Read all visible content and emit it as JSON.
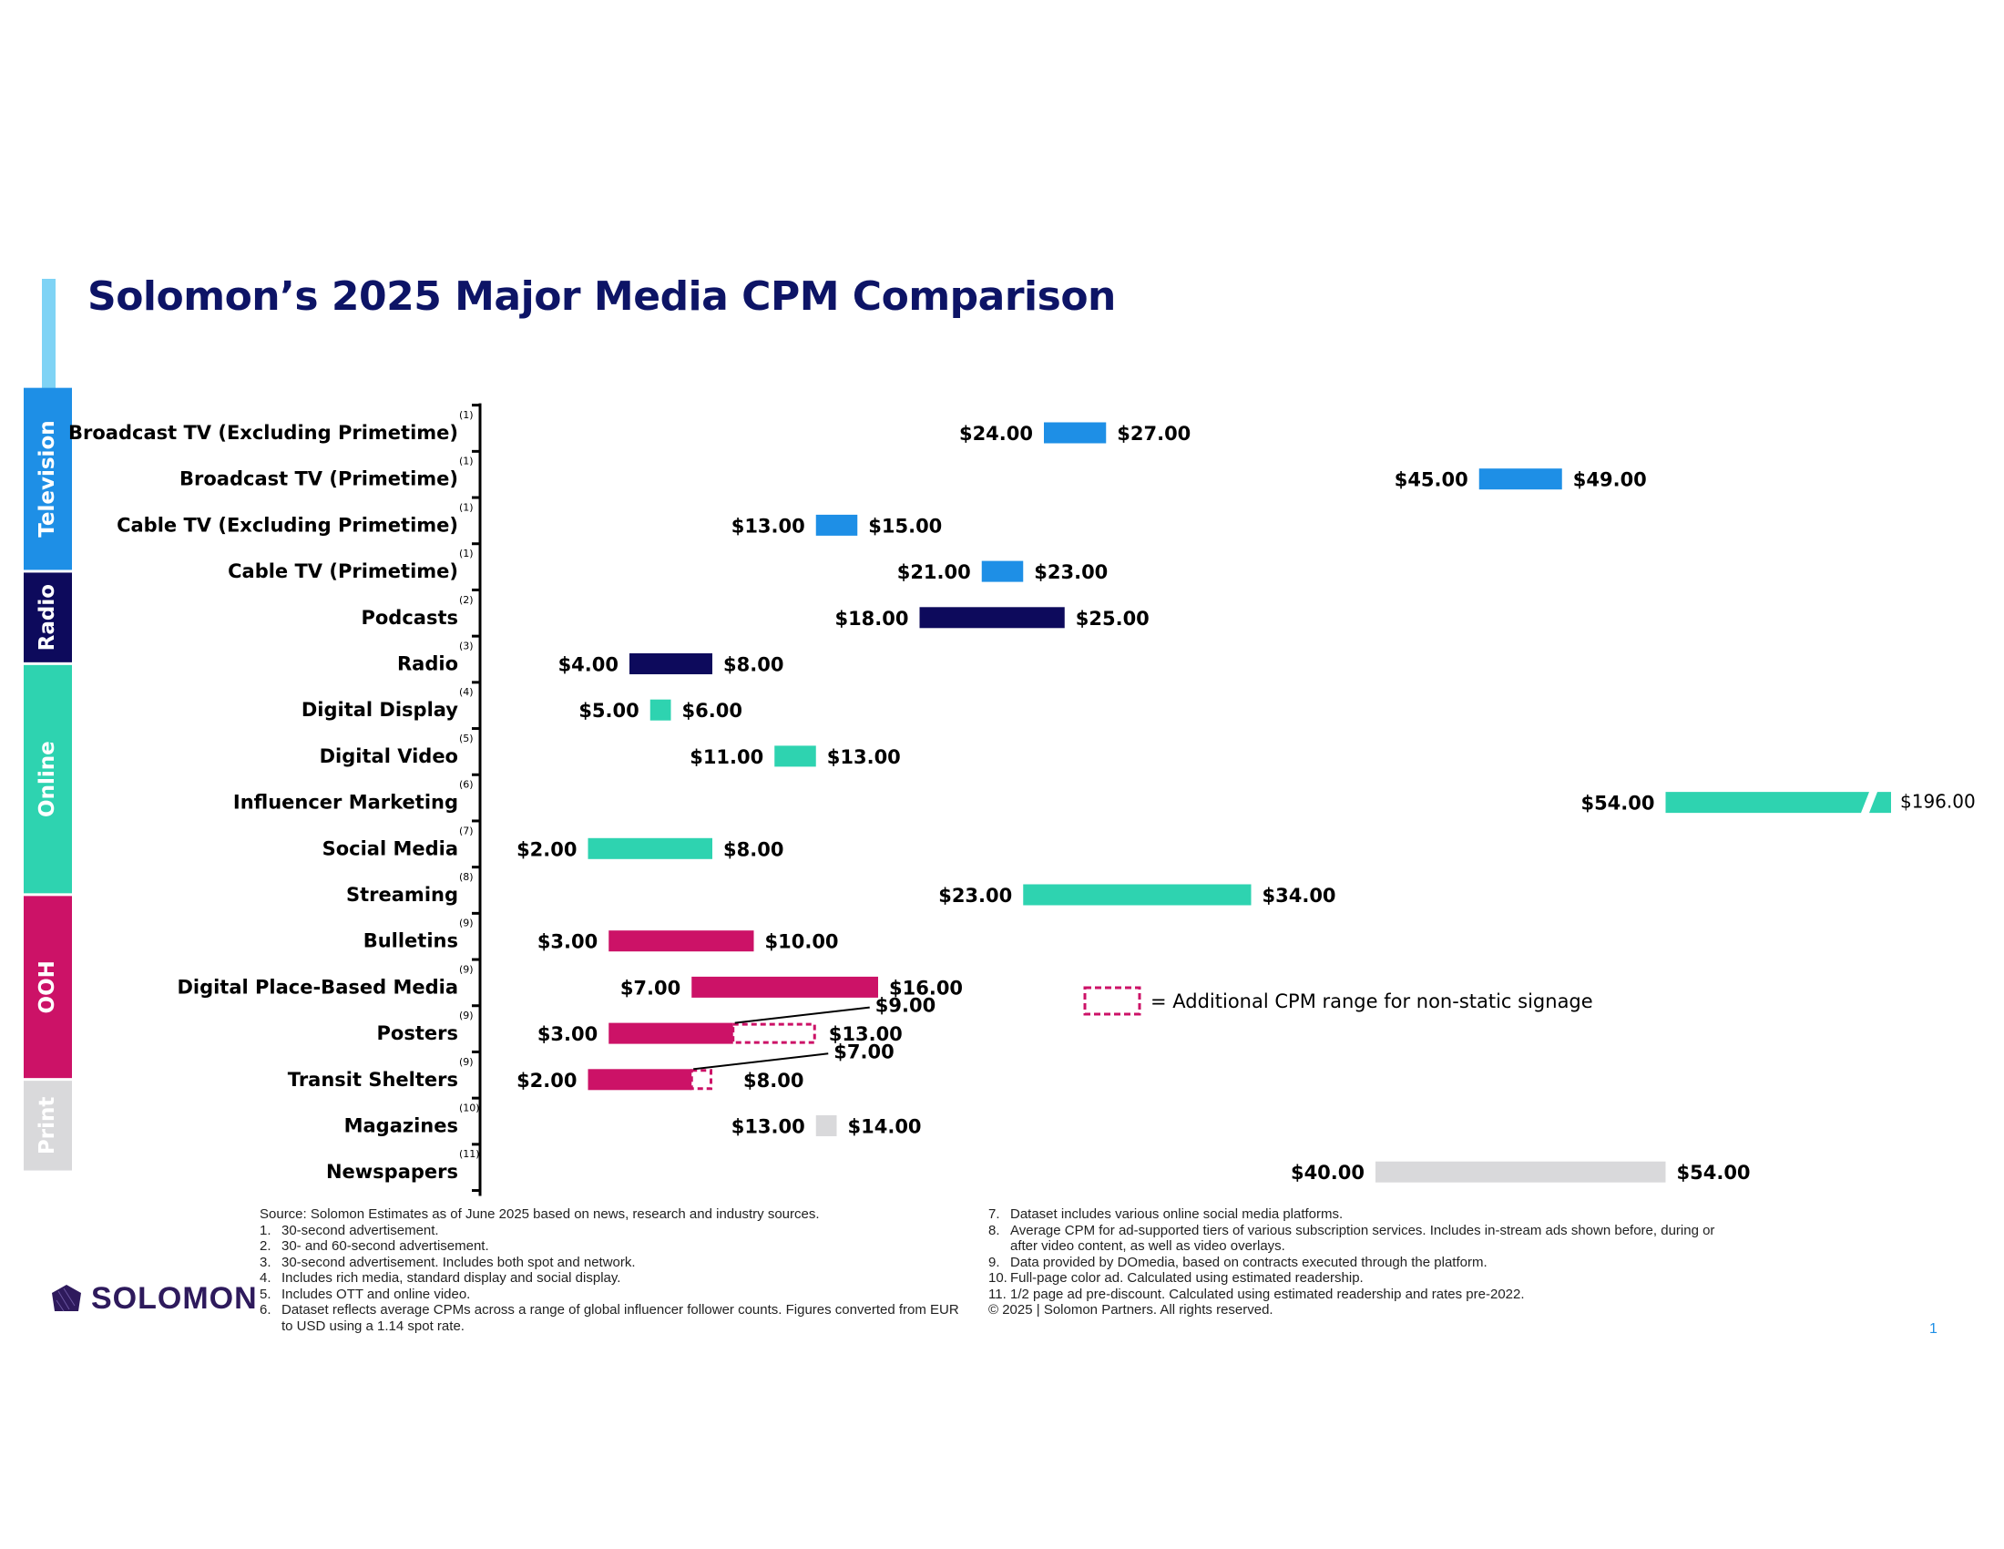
{
  "title": "Solomon’s 2025 Major Media CPM Comparison",
  "colors": {
    "title": "#0d1466",
    "accent": "#7fd3f5",
    "Television": "#1e8fe6",
    "Radio": "#0d0a5c",
    "Online": "#2ed3b0",
    "OOH": "#cc1267",
    "Print": "#d9d9db",
    "logo": "#2e1a5c",
    "page_number": "#1e8fe6"
  },
  "groups": [
    {
      "name": "Television",
      "rows": 4
    },
    {
      "name": "Radio",
      "rows": 2
    },
    {
      "name": "Online",
      "rows": 5
    },
    {
      "name": "OOH",
      "rows": 4
    },
    {
      "name": "Print",
      "rows": 2
    }
  ],
  "chart_data": {
    "type": "floating-bar",
    "title": "Solomon’s 2025 Major Media CPM Comparison",
    "xlabel": "",
    "ylabel": "",
    "unit": "USD CPM",
    "axis_break": "Influencer Marketing bar is broken; upper value $196.00",
    "rows": [
      {
        "label": "Broadcast TV (Excluding Primetime)",
        "note": "(1)",
        "group": "Television",
        "low": 24,
        "high": 27,
        "low_label": "$24.00",
        "high_label": "$27.00"
      },
      {
        "label": "Broadcast TV (Primetime)",
        "note": "(1)",
        "group": "Television",
        "low": 45,
        "high": 49,
        "low_label": "$45.00",
        "high_label": "$49.00"
      },
      {
        "label": "Cable TV (Excluding Primetime)",
        "note": "(1)",
        "group": "Television",
        "low": 13,
        "high": 15,
        "low_label": "$13.00",
        "high_label": "$15.00"
      },
      {
        "label": "Cable TV (Primetime)",
        "note": "(1)",
        "group": "Television",
        "low": 21,
        "high": 23,
        "low_label": "$21.00",
        "high_label": "$23.00"
      },
      {
        "label": "Podcasts",
        "note": "(2)",
        "group": "Radio",
        "low": 18,
        "high": 25,
        "low_label": "$18.00",
        "high_label": "$25.00"
      },
      {
        "label": "Radio",
        "note": "(3)",
        "group": "Radio",
        "low": 4,
        "high": 8,
        "low_label": "$4.00",
        "high_label": "$8.00"
      },
      {
        "label": "Digital Display",
        "note": "(4)",
        "group": "Online",
        "low": 5,
        "high": 6,
        "low_label": "$5.00",
        "high_label": "$6.00"
      },
      {
        "label": "Digital Video",
        "note": "(5)",
        "group": "Online",
        "low": 11,
        "high": 13,
        "low_label": "$11.00",
        "high_label": "$13.00"
      },
      {
        "label": "Influencer Marketing",
        "note": "(6)",
        "group": "Online",
        "low": 54,
        "high": 196,
        "low_label": "$54.00",
        "high_label": "$196.00",
        "broken": true
      },
      {
        "label": "Social Media",
        "note": "(7)",
        "group": "Online",
        "low": 2,
        "high": 8,
        "low_label": "$2.00",
        "high_label": "$8.00"
      },
      {
        "label": "Streaming",
        "note": "(8)",
        "group": "Online",
        "low": 23,
        "high": 34,
        "low_label": "$23.00",
        "high_label": "$34.00"
      },
      {
        "label": "Bulletins",
        "note": "(9)",
        "group": "OOH",
        "low": 3,
        "high": 10,
        "low_label": "$3.00",
        "high_label": "$10.00"
      },
      {
        "label": "Digital Place-Based Media",
        "note": "(9)",
        "group": "OOH",
        "low": 7,
        "high": 16,
        "low_label": "$7.00",
        "high_label": "$16.00"
      },
      {
        "label": "Posters",
        "note": "(9)",
        "group": "OOH",
        "low": 3,
        "high": 13,
        "static_high": 9,
        "low_label": "$3.00",
        "high_label": "$13.00",
        "static_high_label": "$9.00"
      },
      {
        "label": "Transit Shelters",
        "note": "(9)",
        "group": "OOH",
        "low": 2,
        "high": 8,
        "static_high": 7,
        "low_label": "$2.00",
        "high_label": "$8.00",
        "static_high_label": "$7.00"
      },
      {
        "label": "Magazines",
        "note": "(10)",
        "group": "Print",
        "low": 13,
        "high": 14,
        "low_label": "$13.00",
        "high_label": "$14.00"
      },
      {
        "label": "Newspapers",
        "note": "(11)",
        "group": "Print",
        "low": 40,
        "high": 54,
        "low_label": "$40.00",
        "high_label": "$54.00"
      }
    ],
    "legend": {
      "text": "= Additional CPM range for non-static signage",
      "placement": "right"
    }
  },
  "footnotes_left": [
    {
      "n": "",
      "t": "Source: Solomon Estimates as of June 2025 based on news, research and industry sources."
    },
    {
      "n": "1.",
      "t": "30-second advertisement."
    },
    {
      "n": "2.",
      "t": "30- and 60-second advertisement."
    },
    {
      "n": "3.",
      "t": "30-second advertisement. Includes both spot and network."
    },
    {
      "n": "4.",
      "t": "Includes rich media, standard display and social display."
    },
    {
      "n": "5.",
      "t": "Includes OTT and online video."
    },
    {
      "n": "6.",
      "t": "Dataset reflects average CPMs across a range of global influencer follower counts. Figures converted from EUR to USD using a 1.14 spot rate."
    }
  ],
  "footnotes_right": [
    {
      "n": "7.",
      "t": "Dataset includes various online social media platforms."
    },
    {
      "n": "8.",
      "t": "Average CPM for ad-supported tiers of various subscription services. Includes in-stream ads shown before, during or after video content, as well as video overlays."
    },
    {
      "n": "9.",
      "t": "Data provided by DOmedia, based on contracts executed through the platform."
    },
    {
      "n": "10.",
      "t": "Full-page color ad. Calculated using estimated readership."
    },
    {
      "n": "11.",
      "t": "1/2 page ad pre-discount. Calculated using estimated readership and rates pre-2022."
    },
    {
      "n": "",
      "t": "© 2025 | Solomon Partners. All rights reserved."
    }
  ],
  "logo": {
    "text": "SOLOMON"
  },
  "page_number": "1"
}
